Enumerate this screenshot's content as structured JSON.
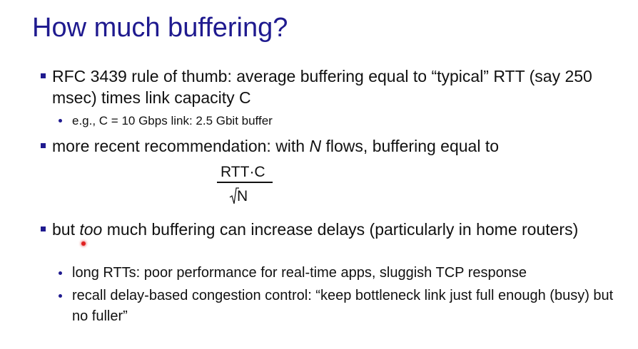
{
  "slide": {
    "title": "How much buffering?",
    "bullets": [
      {
        "level": 1,
        "parts": [
          "RFC 3439 rule of thumb: average buffering equal to “typical” RTT (say 250 msec) times link capacity C"
        ]
      },
      {
        "level": 2,
        "parts": [
          "e.g., C = 10 Gbps link: 2.5 Gbit buffer"
        ]
      },
      {
        "level": 1,
        "parts": [
          "more recent recommendation: with ",
          "N",
          " flows, buffering equal to"
        ]
      },
      {
        "level": 1,
        "parts": [
          "but ",
          "too",
          " much buffering can increase delays (particularly in home routers)"
        ]
      },
      {
        "level": 2,
        "parts": [
          "long RTTs: poor performance for real-time apps, sluggish TCP response"
        ]
      },
      {
        "level": 2,
        "parts": [
          "recall delay-based congestion control: “keep bottleneck link just full enough (busy) but no fuller”"
        ]
      }
    ],
    "formula": {
      "numerator": "RTT·C",
      "denominator": "N"
    }
  },
  "colors": {
    "title": "#1f1a8f",
    "bullet_marker": "#1f1a8f",
    "text": "#111111",
    "laser_pointer": "#e02020"
  }
}
